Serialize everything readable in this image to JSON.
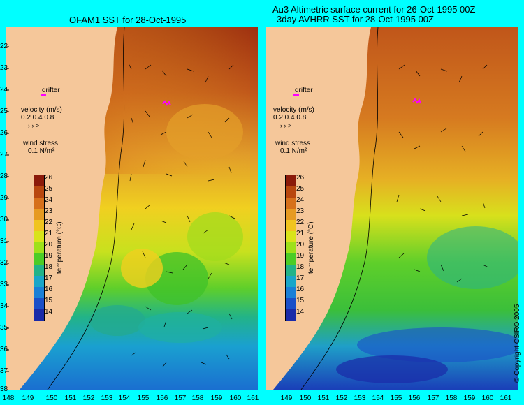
{
  "left_panel": {
    "title": "OFAM1 SST for 28-Oct-1995",
    "drifter_label": "drifter",
    "velocity_label": "velocity (m/s)",
    "velocity_scale": "0.2 0.4 0.8",
    "wind_label": "wind stress",
    "wind_scale": "0.1 N/m²",
    "colorbar_title": "temperature (°C)"
  },
  "right_panel": {
    "title_line1": "Au3 Altimetric surface current for 26-Oct-1995 00Z",
    "title_line2": "3day AVHRR SST for 28-Oct-1995 00Z",
    "drifter_label": "drifter",
    "velocity_label": "velocity (m/s)",
    "velocity_scale": "0.2 0.4 0.8",
    "wind_label": "wind stress",
    "wind_scale": "0.1 N/m²",
    "colorbar_title": "temperature (°C)",
    "copyright": "© Copyright CSIRO 2005"
  },
  "map": {
    "latitude_labels": [
      "22",
      "23",
      "24",
      "25",
      "26",
      "27",
      "28",
      "29",
      "30",
      "31",
      "32",
      "33",
      "34",
      "35",
      "36",
      "37",
      "38"
    ],
    "longitude_labels_left": [
      "148",
      "149",
      "150",
      "151",
      "152",
      "153",
      "154",
      "155",
      "156",
      "157",
      "158",
      "159",
      "160",
      "161"
    ],
    "longitude_labels_right": [
      "149",
      "150",
      "151",
      "152",
      "153",
      "154",
      "155",
      "156",
      "157",
      "158",
      "159",
      "160",
      "161"
    ],
    "lon_range": [
      148,
      161
    ],
    "lat_range": [
      -38,
      -21.3
    ]
  },
  "colorbar": {
    "levels": [
      "26",
      "25",
      "24",
      "23",
      "22",
      "21",
      "20",
      "19",
      "18",
      "17",
      "16",
      "15",
      "14"
    ],
    "colors": [
      "#8b1a0a",
      "#b8470f",
      "#d6701b",
      "#e69a22",
      "#f0c41e",
      "#d9e31a",
      "#9fe01a",
      "#4ccc26",
      "#22b388",
      "#1aa6c8",
      "#1a7fd6",
      "#1a4fc8",
      "#1a2aa8"
    ]
  },
  "colors": {
    "land": "#f5c79a",
    "frame_bg": "#00ffff",
    "drifter": "#ff00ff"
  }
}
